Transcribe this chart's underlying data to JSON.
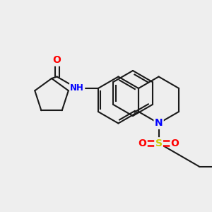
{
  "bg_color": "#eeeeee",
  "bond_color": "#1a1a1a",
  "bond_width": 1.5,
  "atom_colors": {
    "O": "#ff0000",
    "N": "#0000ff",
    "S": "#cccc00",
    "C": "#1a1a1a"
  },
  "font_size": 9,
  "figsize": [
    3.0,
    3.0
  ],
  "dpi": 100
}
